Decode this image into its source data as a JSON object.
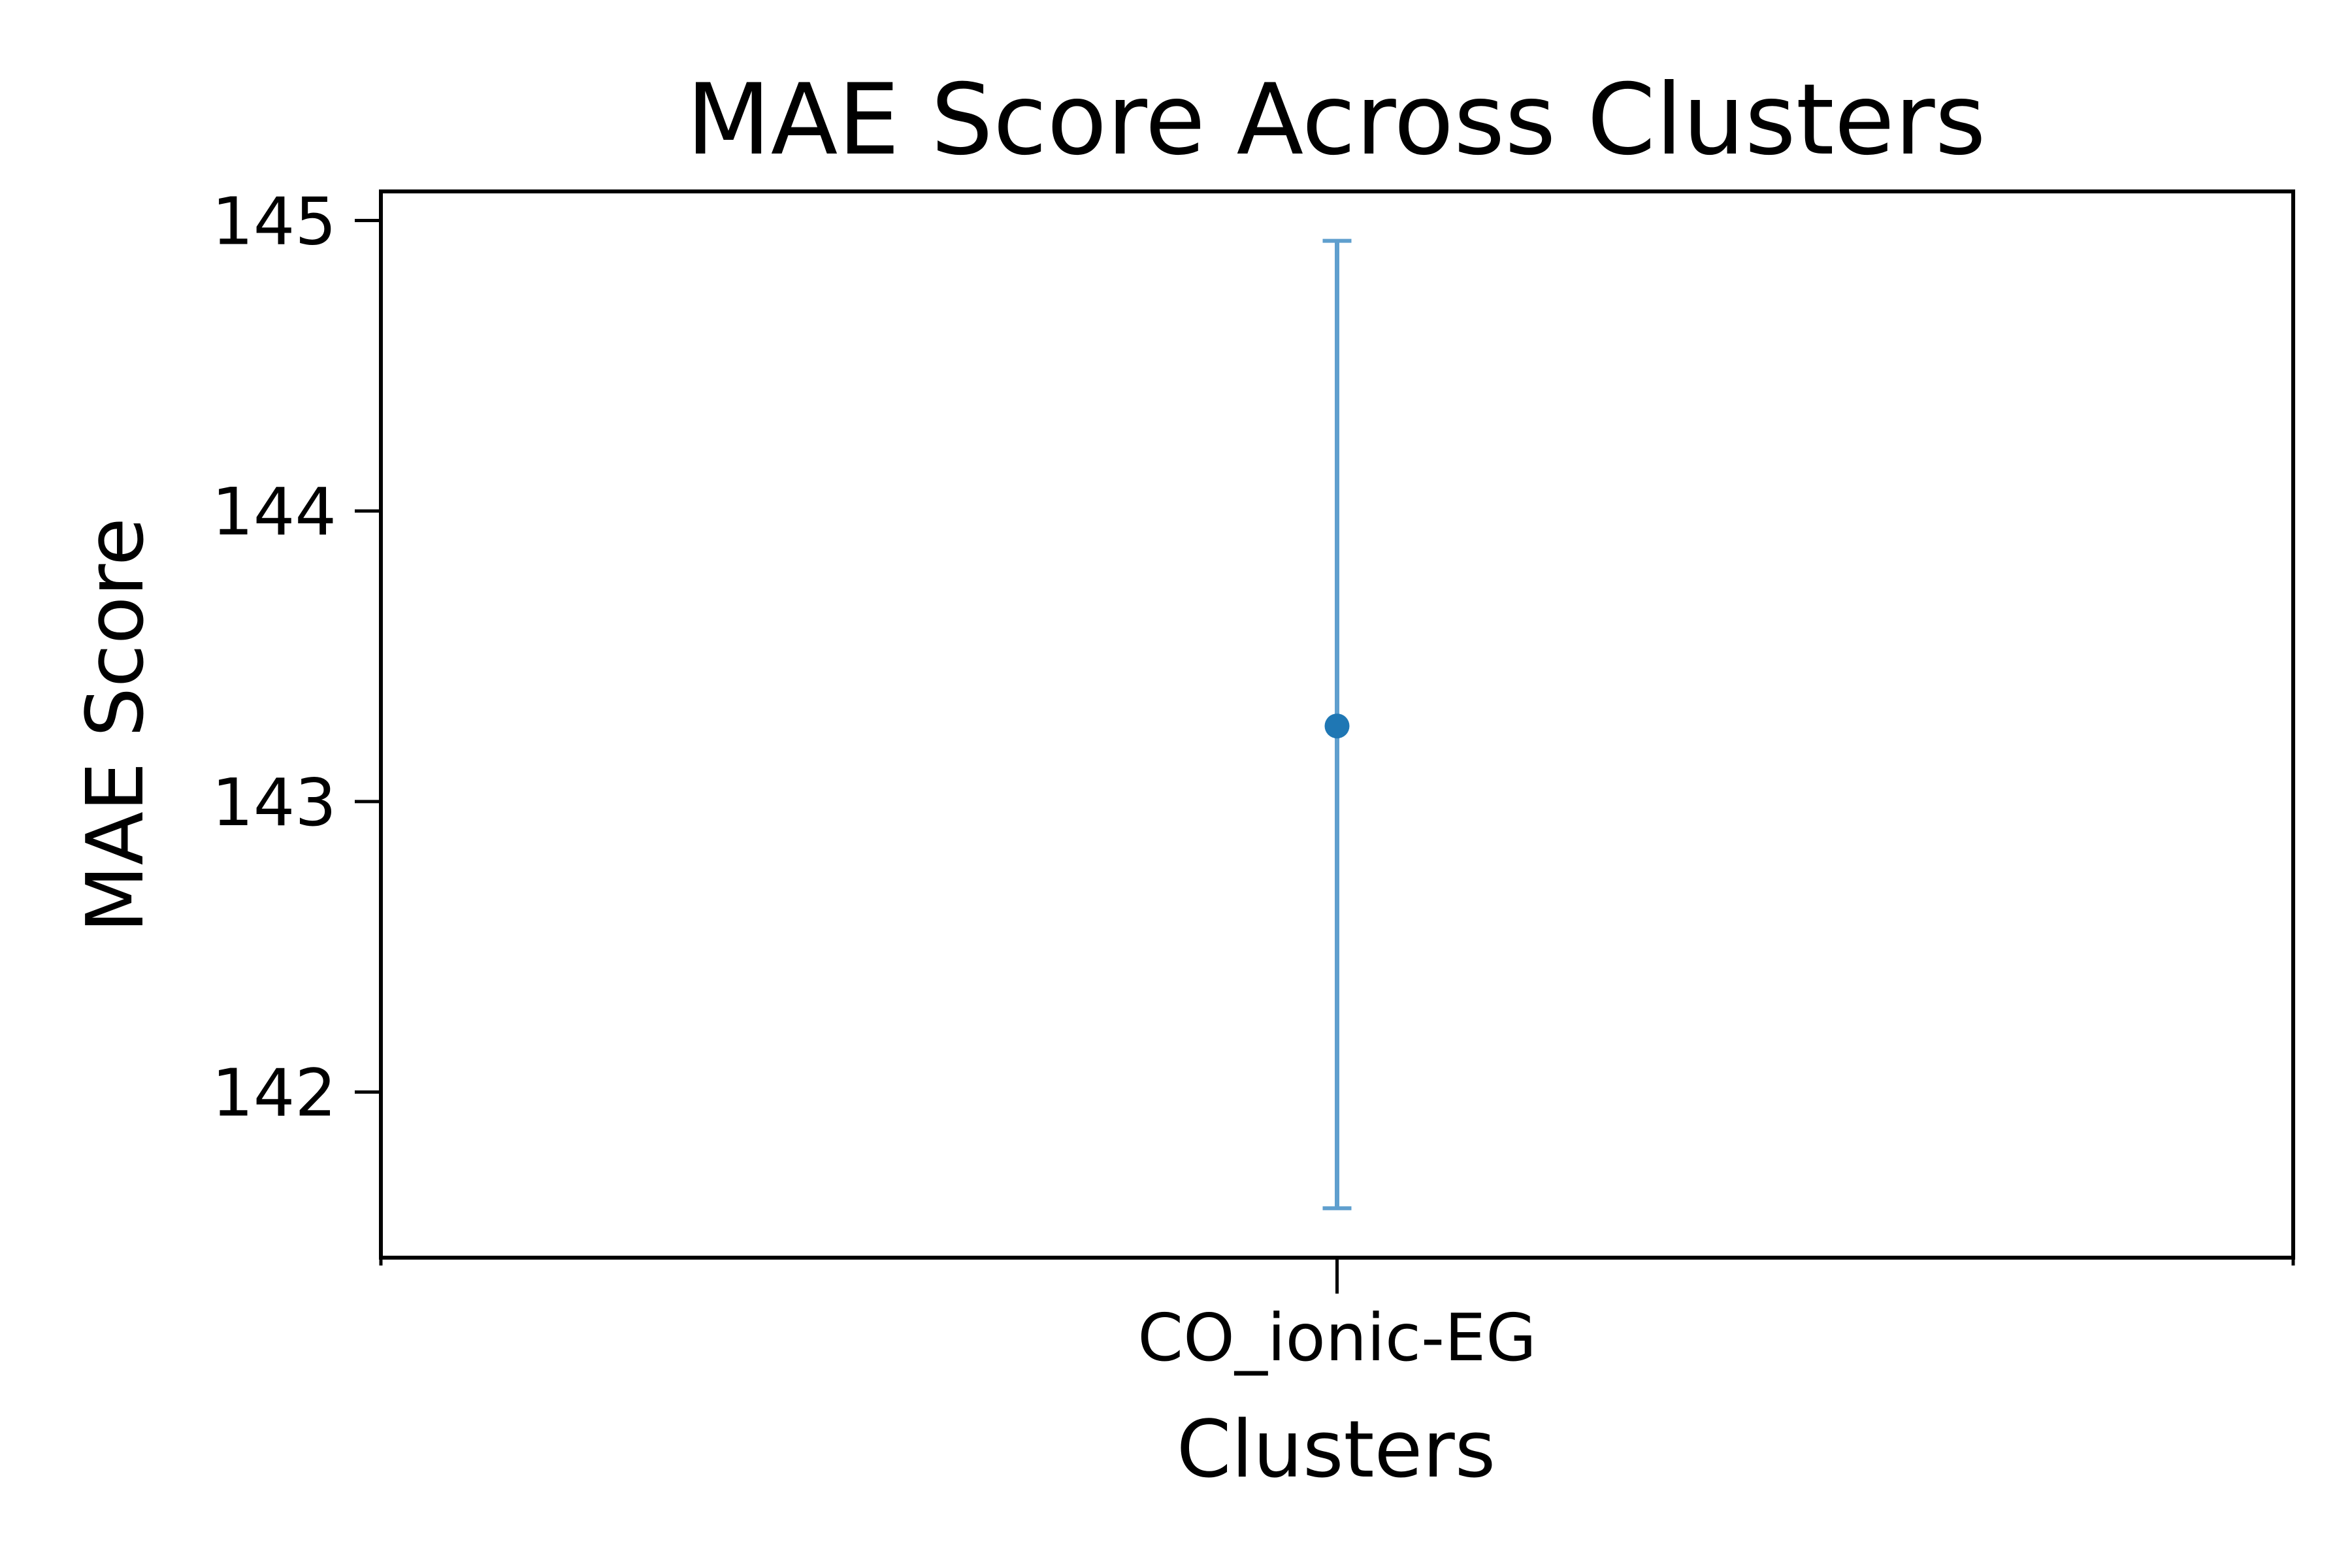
{
  "chart_data": {
    "type": "scatter",
    "title": "MAE Score Across Clusters",
    "xlabel": "Clusters",
    "ylabel": "MAE Score",
    "categories": [
      "CO_ionic-EG"
    ],
    "series": [
      {
        "values": [
          143.26
        ],
        "error_low": [
          141.6
        ],
        "error_high": [
          144.93
        ]
      }
    ],
    "ylim": [
      141.43,
      145.1
    ],
    "xlim": [
      -1,
      1
    ],
    "yticks": [
      142,
      143,
      144,
      145
    ],
    "ytick_labels": [
      "142",
      "143",
      "144",
      "145"
    ],
    "grid": false,
    "legend": "none",
    "colors": {
      "point": "#1f77b4",
      "errorbar": "#5f9fce",
      "axes": "#000000"
    }
  }
}
